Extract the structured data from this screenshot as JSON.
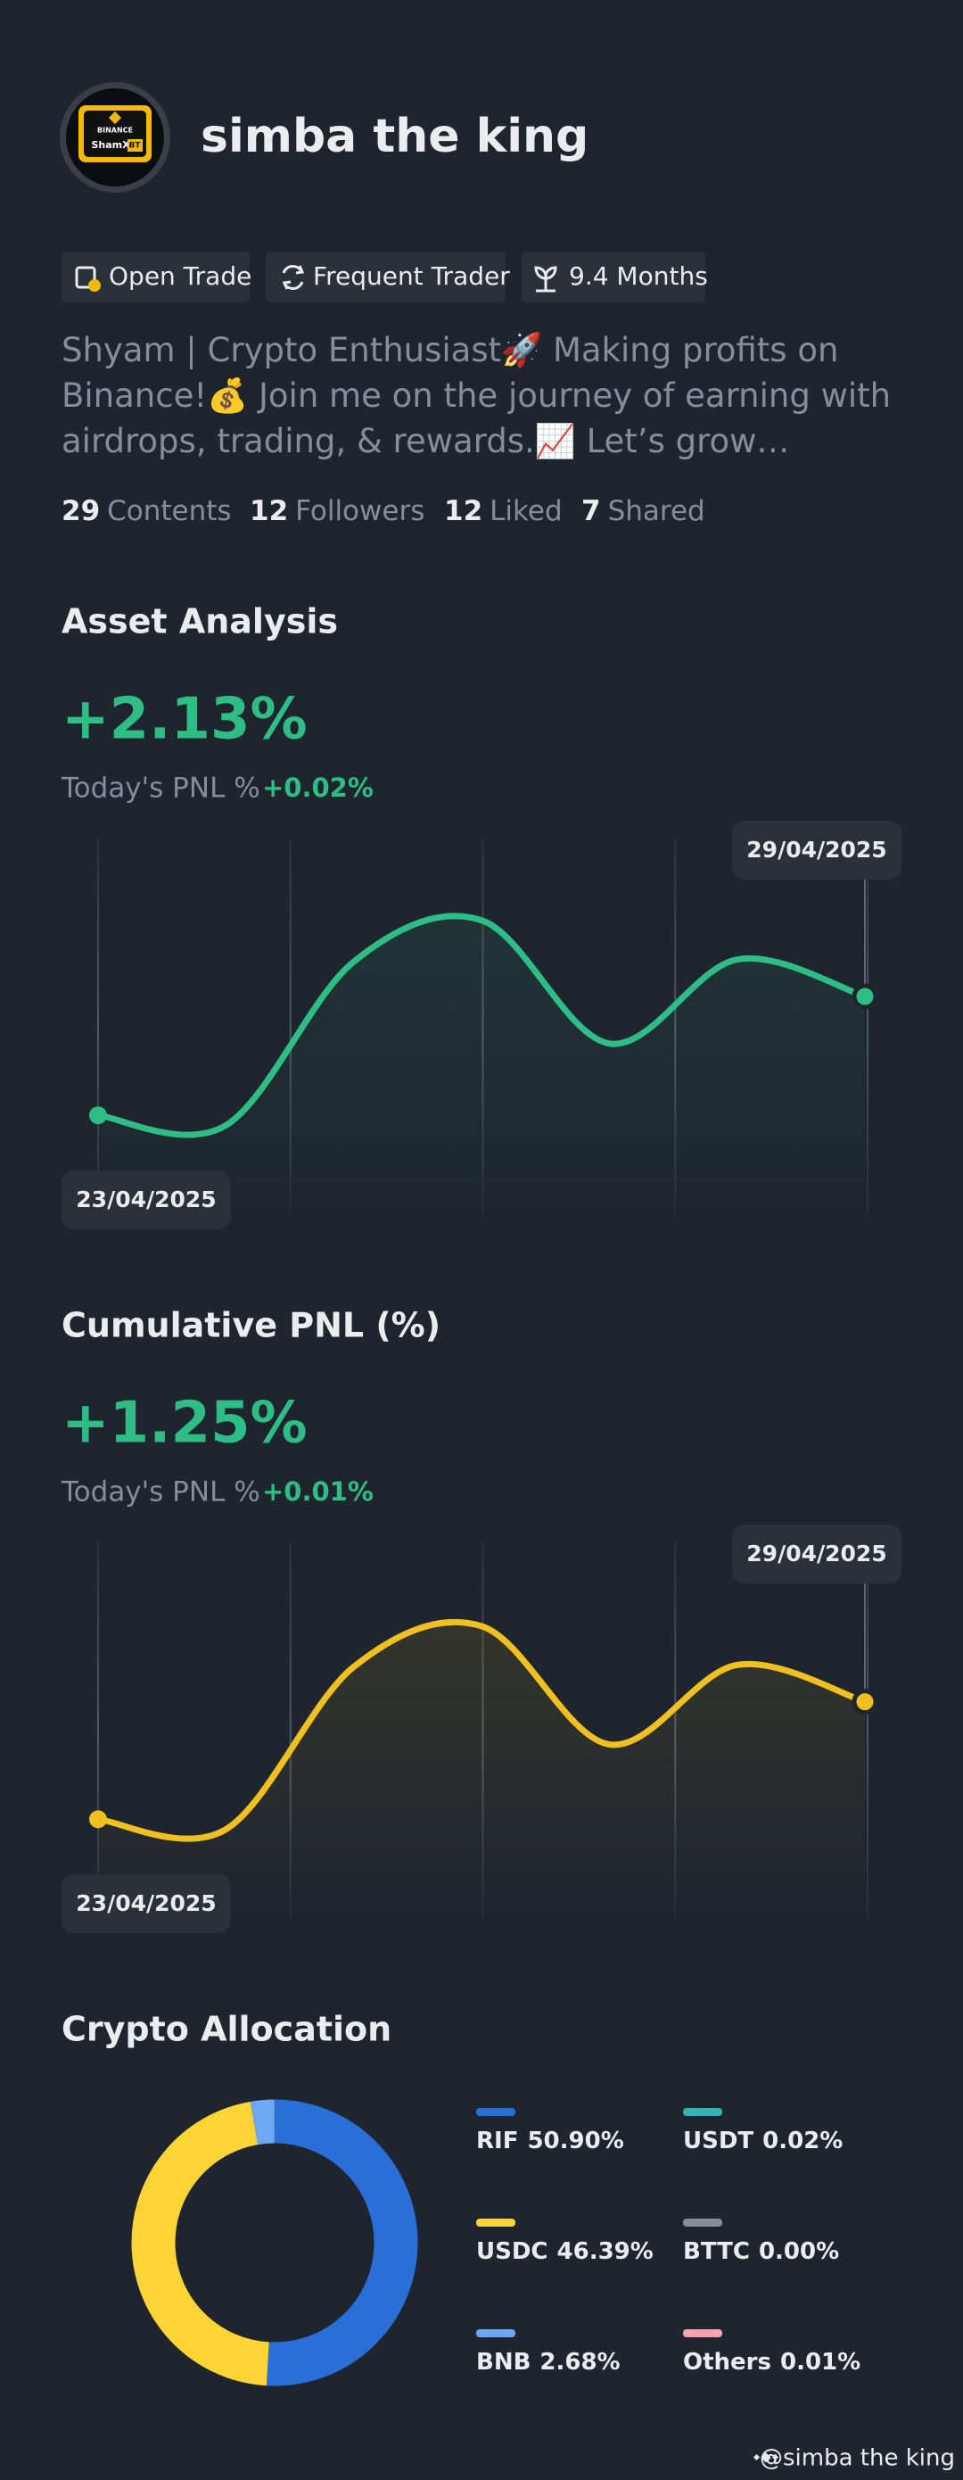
{
  "profile": {
    "avatar": {
      "brand": "BINANCE",
      "name": "ShamX",
      "badge": "BT"
    },
    "name": "simba the king",
    "tags": [
      "Open Trade",
      "Frequent Trader",
      "9.4 Months"
    ],
    "bio": "Shyam | Crypto Enthusiast🚀 Making profits on Binance!💰 Join me on the journey of earning with airdrops, trading, & rewards.📈 Let’s grow together!...",
    "stats": [
      {
        "count": "29",
        "label": "Contents"
      },
      {
        "count": "12",
        "label": "Followers"
      },
      {
        "count": "12",
        "label": "Liked"
      },
      {
        "count": "7",
        "label": "Shared"
      }
    ]
  },
  "chart_data": [
    {
      "type": "line",
      "title": "Asset Analysis",
      "headline": "+2.13%",
      "subtitle": "Today's PNL %",
      "today": "+0.02%",
      "categories": [
        "23/04/2025",
        null,
        null,
        null,
        null,
        null,
        "29/04/2025"
      ],
      "series": [
        {
          "color": "#2ebd85",
          "values": [
            0.29,
            0.2,
            1.66,
            2.03,
            0.93,
            1.68,
            1.35
          ]
        }
      ],
      "ylim": [
        -0.6,
        2.6
      ]
    },
    {
      "type": "line",
      "title": "Cumulative PNL (%)",
      "headline": "+1.25%",
      "subtitle": "Today's PNL %",
      "today": "+0.01%",
      "categories": [
        "23/04/2025",
        null,
        null,
        null,
        null,
        null,
        "29/04/2025"
      ],
      "series": [
        {
          "color": "#f0c020",
          "values": [
            0.164,
            0.112,
            0.95,
            1.16,
            0.55,
            0.96,
            0.77
          ]
        }
      ],
      "ylim": [
        -0.35,
        1.5
      ]
    },
    {
      "type": "donut",
      "title": "Crypto Allocation",
      "categories": [
        "RIF",
        "USDC",
        "BNB",
        "USDT",
        "BTTC",
        "Others"
      ],
      "values": [
        50.9,
        46.39,
        2.68,
        0.02,
        0,
        0.01
      ],
      "value_labels": [
        "50.90%",
        "46.39%",
        "2.68%",
        "0.02%",
        "0.00%",
        "0.01%"
      ],
      "colors": [
        "#2a6fd8",
        "#fcd535",
        "#6fa8f2",
        "#2fb4b9",
        "#858e9c",
        "#f5a3b0"
      ]
    }
  ],
  "watermark": "@simba the king"
}
